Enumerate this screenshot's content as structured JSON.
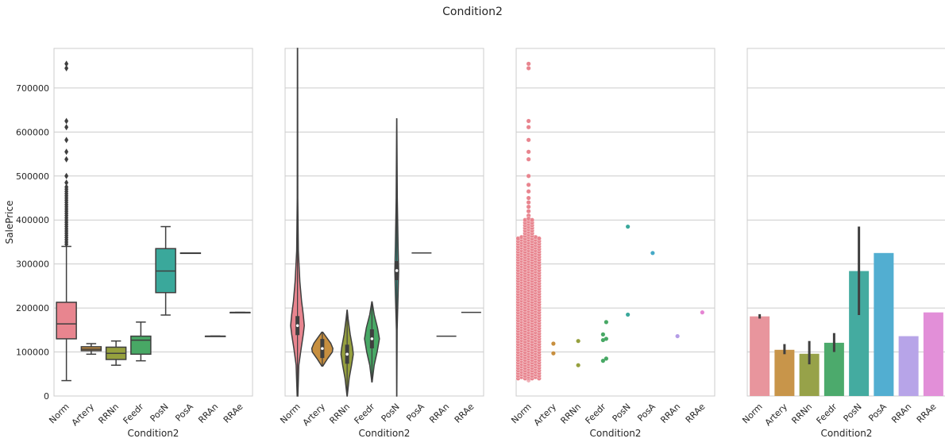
{
  "figure": {
    "title": "Condition2"
  },
  "chart_data": [
    {
      "type": "box",
      "xlabel": "Condition2",
      "ylabel": "SalePrice",
      "ylim": [
        0,
        790000
      ],
      "yticks": [
        0,
        100000,
        200000,
        300000,
        400000,
        500000,
        600000,
        700000
      ],
      "grid": "y",
      "categories": [
        "Norm",
        "Artery",
        "RRNn",
        "Feedr",
        "PosN",
        "PosA",
        "RRAn",
        "RRAe"
      ],
      "colors": [
        "#E8858F",
        "#C78F3F",
        "#96A03E",
        "#48A865",
        "#3AA89B",
        "#46A9C6",
        "#B49CE6",
        "#E585D3"
      ],
      "boxes": [
        {
          "category": "Norm",
          "min": 35000,
          "q1": 130000,
          "median": 164000,
          "q3": 213000,
          "max": 340000,
          "outliers": [
            345000,
            350000,
            355000,
            360000,
            365000,
            370000,
            375000,
            380000,
            385000,
            390000,
            395000,
            400000,
            405000,
            410000,
            415000,
            420000,
            425000,
            430000,
            435000,
            440000,
            445000,
            450000,
            455000,
            460000,
            465000,
            470000,
            475000,
            485000,
            500000,
            538000,
            555000,
            582000,
            611000,
            625000,
            745000,
            755000
          ]
        },
        {
          "category": "Artery",
          "min": 95000,
          "q1": 103000,
          "median": 106500,
          "q3": 112000,
          "max": 119000,
          "outliers": []
        },
        {
          "category": "RRNn",
          "min": 70000,
          "q1": 83000,
          "median": 97000,
          "q3": 111000,
          "max": 125000,
          "outliers": []
        },
        {
          "category": "Feedr",
          "min": 80000,
          "q1": 95000,
          "median": 127000,
          "q3": 136000,
          "max": 168000,
          "outliers": []
        },
        {
          "category": "PosN",
          "min": 184000,
          "q1": 235000,
          "median": 284000,
          "q3": 335000,
          "max": 385000,
          "outliers": []
        },
        {
          "category": "PosA",
          "min": 325000,
          "q1": 325000,
          "median": 325000,
          "q3": 325000,
          "max": 325000,
          "outliers": []
        },
        {
          "category": "RRAn",
          "min": 136000,
          "q1": 136000,
          "median": 136000,
          "q3": 136000,
          "max": 136000,
          "outliers": []
        },
        {
          "category": "RRAe",
          "min": 190000,
          "q1": 190000,
          "median": 190000,
          "q3": 190000,
          "max": 190000,
          "outliers": []
        }
      ]
    },
    {
      "type": "violin",
      "xlabel": "Condition2",
      "ylim": [
        0,
        790000
      ],
      "grid": "y",
      "categories": [
        "Norm",
        "Artery",
        "RRNn",
        "Feedr",
        "PosN",
        "PosA",
        "RRAn",
        "RRAe"
      ],
      "colors": [
        "#E8858F",
        "#C78F3F",
        "#96A03E",
        "#48A865",
        "#3AA89B",
        "#46A9C6",
        "#B49CE6",
        "#E585D3"
      ],
      "violins": [
        {
          "category": "Norm",
          "profile": [
            [
              0,
              0.05
            ],
            [
              70000,
              0.2
            ],
            [
              110000,
              0.55
            ],
            [
              140000,
              0.85
            ],
            [
              160000,
              1.0
            ],
            [
              185000,
              0.85
            ],
            [
              215000,
              0.6
            ],
            [
              260000,
              0.35
            ],
            [
              330000,
              0.12
            ],
            [
              450000,
              0.04
            ],
            [
              790000,
              0.02
            ]
          ],
          "width": 0.55
        },
        {
          "category": "Artery",
          "profile": [
            [
              68000,
              0.05
            ],
            [
              85000,
              0.5
            ],
            [
              100000,
              0.95
            ],
            [
              108000,
              1.0
            ],
            [
              120000,
              0.8
            ],
            [
              135000,
              0.35
            ],
            [
              145000,
              0.05
            ]
          ],
          "width": 0.85
        },
        {
          "category": "RRNn",
          "profile": [
            [
              0,
              0.02
            ],
            [
              40000,
              0.3
            ],
            [
              70000,
              0.65
            ],
            [
              95000,
              0.9
            ],
            [
              110000,
              0.8
            ],
            [
              140000,
              0.45
            ],
            [
              175000,
              0.15
            ],
            [
              195000,
              0.02
            ]
          ],
          "width": 0.55
        },
        {
          "category": "Feedr",
          "profile": [
            [
              32000,
              0.02
            ],
            [
              70000,
              0.3
            ],
            [
              100000,
              0.7
            ],
            [
              130000,
              1.0
            ],
            [
              155000,
              0.75
            ],
            [
              185000,
              0.3
            ],
            [
              214000,
              0.02
            ]
          ],
          "width": 0.6
        },
        {
          "category": "PosN",
          "profile": [
            [
              0,
              0.01
            ],
            [
              150000,
              0.05
            ],
            [
              230000,
              0.2
            ],
            [
              285000,
              0.28
            ],
            [
              340000,
              0.2
            ],
            [
              450000,
              0.08
            ],
            [
              630000,
              0.01
            ]
          ],
          "width": 0.55
        },
        {
          "category": "PosA",
          "profile": [
            [
              325000,
              0.7
            ]
          ],
          "width": 0.8
        },
        {
          "category": "RRAn",
          "profile": [
            [
              136000,
              0.7
            ]
          ],
          "width": 0.8
        },
        {
          "category": "RRAe",
          "profile": [
            [
              190000,
              0.7
            ]
          ],
          "width": 0.8
        }
      ]
    },
    {
      "type": "scatter",
      "xlabel": "Condition2",
      "ylim": [
        0,
        790000
      ],
      "grid": "y",
      "categories": [
        "Norm",
        "Artery",
        "RRNn",
        "Feedr",
        "PosN",
        "PosA",
        "RRAn",
        "RRAe"
      ],
      "colors": [
        "#E8858F",
        "#C78F3F",
        "#96A03E",
        "#48A865",
        "#3AA89B",
        "#46A9C6",
        "#B49CE6",
        "#E585D3"
      ],
      "points": [
        {
          "category": "Norm",
          "values": [
            36000,
            38000,
            40000,
            45000,
            55000,
            60000,
            70000,
            80000,
            90000,
            100000,
            110000,
            120000,
            130000,
            140000,
            150000,
            160000,
            170000,
            180000,
            190000,
            200000,
            210000,
            220000,
            230000,
            240000,
            250000,
            260000,
            270000,
            280000,
            290000,
            300000,
            310000,
            320000,
            330000,
            340000,
            350000,
            360000,
            370000,
            380000,
            390000,
            400000,
            410000,
            420000,
            430000,
            440000,
            450000,
            465000,
            480000,
            500000,
            538000,
            555000,
            582000,
            611000,
            625000,
            745000,
            755000
          ]
        },
        {
          "category": "Artery",
          "values": [
            97000,
            119000
          ]
        },
        {
          "category": "RRNn",
          "values": [
            70000,
            125000
          ]
        },
        {
          "category": "Feedr",
          "values": [
            80000,
            85000,
            127000,
            130000,
            140000,
            168000
          ]
        },
        {
          "category": "PosN",
          "values": [
            185000,
            385000
          ]
        },
        {
          "category": "PosA",
          "values": [
            325000
          ]
        },
        {
          "category": "RRAn",
          "values": [
            136000
          ]
        },
        {
          "category": "RRAe",
          "values": [
            190000
          ]
        }
      ]
    },
    {
      "type": "bar",
      "xlabel": "Condition2",
      "ylim": [
        0,
        790000
      ],
      "grid": "y",
      "categories": [
        "Norm",
        "Artery",
        "RRNn",
        "Feedr",
        "PosN",
        "PosA",
        "RRAn",
        "RRAe"
      ],
      "colors": [
        "#E8959D",
        "#C8954A",
        "#97A249",
        "#4CAA6C",
        "#44ABA0",
        "#52AED1",
        "#B7A4E8",
        "#E28FD8"
      ],
      "values": [
        181000,
        105000,
        96000,
        121000,
        284000,
        325000,
        136000,
        190000
      ],
      "error_low": [
        176000,
        95000,
        72000,
        100000,
        184000,
        325000,
        136000,
        190000
      ],
      "error_high": [
        186000,
        118000,
        125000,
        143000,
        385000,
        325000,
        136000,
        190000
      ]
    }
  ]
}
